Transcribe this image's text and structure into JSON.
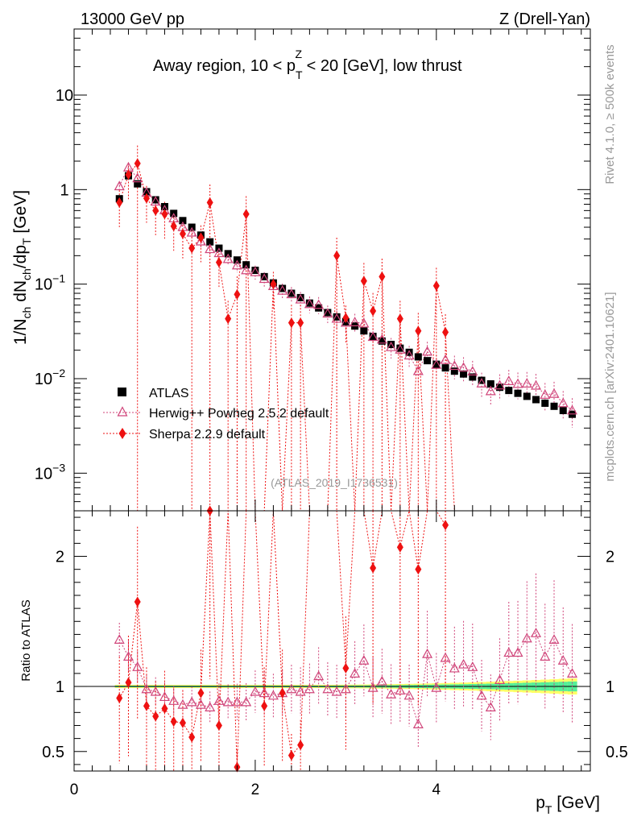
{
  "header": {
    "left": "13000 GeV pp",
    "right": "Z (Drell-Yan)"
  },
  "side_labels": {
    "rivet": "Rivet 4.1.0, ≥ 500k events",
    "mcplots": "mcplots.cern.ch [arXiv:2401.10621]"
  },
  "chart_data": {
    "type": "scatter",
    "title": {
      "prefix": "Away region, 10 < p",
      "sub": "T",
      "sup": "Z",
      "suffix": " < 20 [GeV], low thrust"
    },
    "analysis_tag": "(ATLAS_2019_I1736531)",
    "xlabel": {
      "main": "p",
      "sub": "T",
      "unit": " [GeV]"
    },
    "ylabel": {
      "p1": "1/N",
      "s1": "ch",
      "p2": " dN",
      "s2": "ch",
      "p3": "/dp",
      "s3": "T",
      "p4": " [GeV]"
    },
    "ratio_ylabel": "Ratio to ATLAS",
    "x_range": [
      0,
      5.7
    ],
    "y_range": [
      0.0004,
      50
    ],
    "y_scale": "log",
    "ratio_range": [
      0.35,
      2.35
    ],
    "x_ticks": [
      {
        "value": 0,
        "label": "0"
      },
      {
        "value": 2,
        "label": "2"
      },
      {
        "value": 4,
        "label": "4"
      }
    ],
    "y_ticks": [
      {
        "value": 0.001,
        "base": "10",
        "exp": "−3"
      },
      {
        "value": 0.01,
        "base": "10",
        "exp": "−2"
      },
      {
        "value": 0.1,
        "base": "10",
        "exp": "−1"
      },
      {
        "value": 1,
        "base": "1",
        "exp": ""
      },
      {
        "value": 10,
        "base": "10",
        "exp": ""
      }
    ],
    "ratio_ticks": [
      {
        "value": 0.5,
        "label": "0.5"
      },
      {
        "value": 1,
        "label": "1"
      },
      {
        "value": 2,
        "label": "2"
      }
    ],
    "x": [
      0.5,
      0.6,
      0.7,
      0.8,
      0.9,
      1.0,
      1.1,
      1.2,
      1.3,
      1.4,
      1.5,
      1.6,
      1.7,
      1.8,
      1.9,
      2.0,
      2.1,
      2.2,
      2.3,
      2.4,
      2.5,
      2.6,
      2.7,
      2.8,
      2.9,
      3.0,
      3.1,
      3.2,
      3.3,
      3.4,
      3.5,
      3.6,
      3.7,
      3.8,
      3.9,
      4.0,
      4.1,
      4.2,
      4.3,
      4.4,
      4.5,
      4.6,
      4.7,
      4.8,
      4.9,
      5.0,
      5.1,
      5.2,
      5.3,
      5.4,
      5.5
    ],
    "series": [
      {
        "name": "ATLAS",
        "color": "#000000",
        "marker": "square",
        "values": [
          0.8,
          1.4,
          1.15,
          0.95,
          0.78,
          0.66,
          0.56,
          0.47,
          0.4,
          0.33,
          0.28,
          0.24,
          0.21,
          0.18,
          0.16,
          0.14,
          0.12,
          0.103,
          0.09,
          0.08,
          0.072,
          0.063,
          0.056,
          0.05,
          0.045,
          0.04,
          0.036,
          0.032,
          0.028,
          0.025,
          0.023,
          0.021,
          0.019,
          0.017,
          0.0155,
          0.0142,
          0.013,
          0.012,
          0.0112,
          0.0104,
          0.0096,
          0.0088,
          0.0081,
          0.0075,
          0.007,
          0.0065,
          0.006,
          0.0055,
          0.0051,
          0.0046,
          0.0042
        ]
      },
      {
        "name": "Herwig++ Powheg 2.5.2 default",
        "color": "#d0457a",
        "marker": "triangle",
        "ratio": [
          1.36,
          1.23,
          1.15,
          0.98,
          0.96,
          0.92,
          0.89,
          0.86,
          0.88,
          0.86,
          0.84,
          0.89,
          0.88,
          0.88,
          0.88,
          0.96,
          0.95,
          0.93,
          0.95,
          0.98,
          0.96,
          0.98,
          1.08,
          0.98,
          0.96,
          0.98,
          1.1,
          1.2,
          0.99,
          1.04,
          0.94,
          0.97,
          0.93,
          0.71,
          1.25,
          0.99,
          1.22,
          1.14,
          1.17,
          1.15,
          0.93,
          0.84,
          1.05,
          1.26,
          1.26,
          1.37,
          1.41,
          1.23,
          1.36,
          1.2,
          1.1
        ]
      },
      {
        "name": "Sherpa 2.2.9 default",
        "color": "#ee1111",
        "marker": "diamond",
        "ratio": [
          0.91,
          1.03,
          1.65,
          0.85,
          0.77,
          0.83,
          0.73,
          0.72,
          0.61,
          0.95,
          2.35,
          0.7,
          null,
          0.38,
          null,
          null,
          0.85,
          null,
          0.95,
          0.47,
          0.55,
          null,
          null,
          null,
          null,
          1.14,
          null,
          null,
          1.91,
          null,
          null,
          2.07,
          null,
          1.9,
          null,
          null,
          2.24,
          null,
          null,
          null,
          null,
          null,
          null,
          null,
          null,
          null,
          null,
          null,
          null,
          null,
          null
        ],
        "main": [
          0.73,
          1.44,
          1.89,
          0.81,
          0.6,
          0.55,
          0.41,
          0.34,
          0.24,
          0.31,
          0.73,
          0.17,
          0.043,
          0.078,
          0.55,
          null,
          null,
          0.1,
          null,
          0.039,
          0.039,
          null,
          null,
          null,
          0.2,
          0.044,
          null,
          0.108,
          0.052,
          0.12,
          null,
          0.043,
          null,
          0.032,
          null,
          0.096,
          0.031,
          null,
          null,
          null,
          null,
          null,
          null,
          null,
          null,
          null,
          null,
          null,
          null,
          null,
          null
        ]
      }
    ],
    "legend": {
      "position": "lower-left",
      "entries": [
        "ATLAS",
        "Herwig++ Powheg 2.5.2 default",
        "Sherpa 2.2.9 default"
      ]
    },
    "band_colors": {
      "inner": "#55ee99",
      "outer": "#ffff66"
    }
  }
}
